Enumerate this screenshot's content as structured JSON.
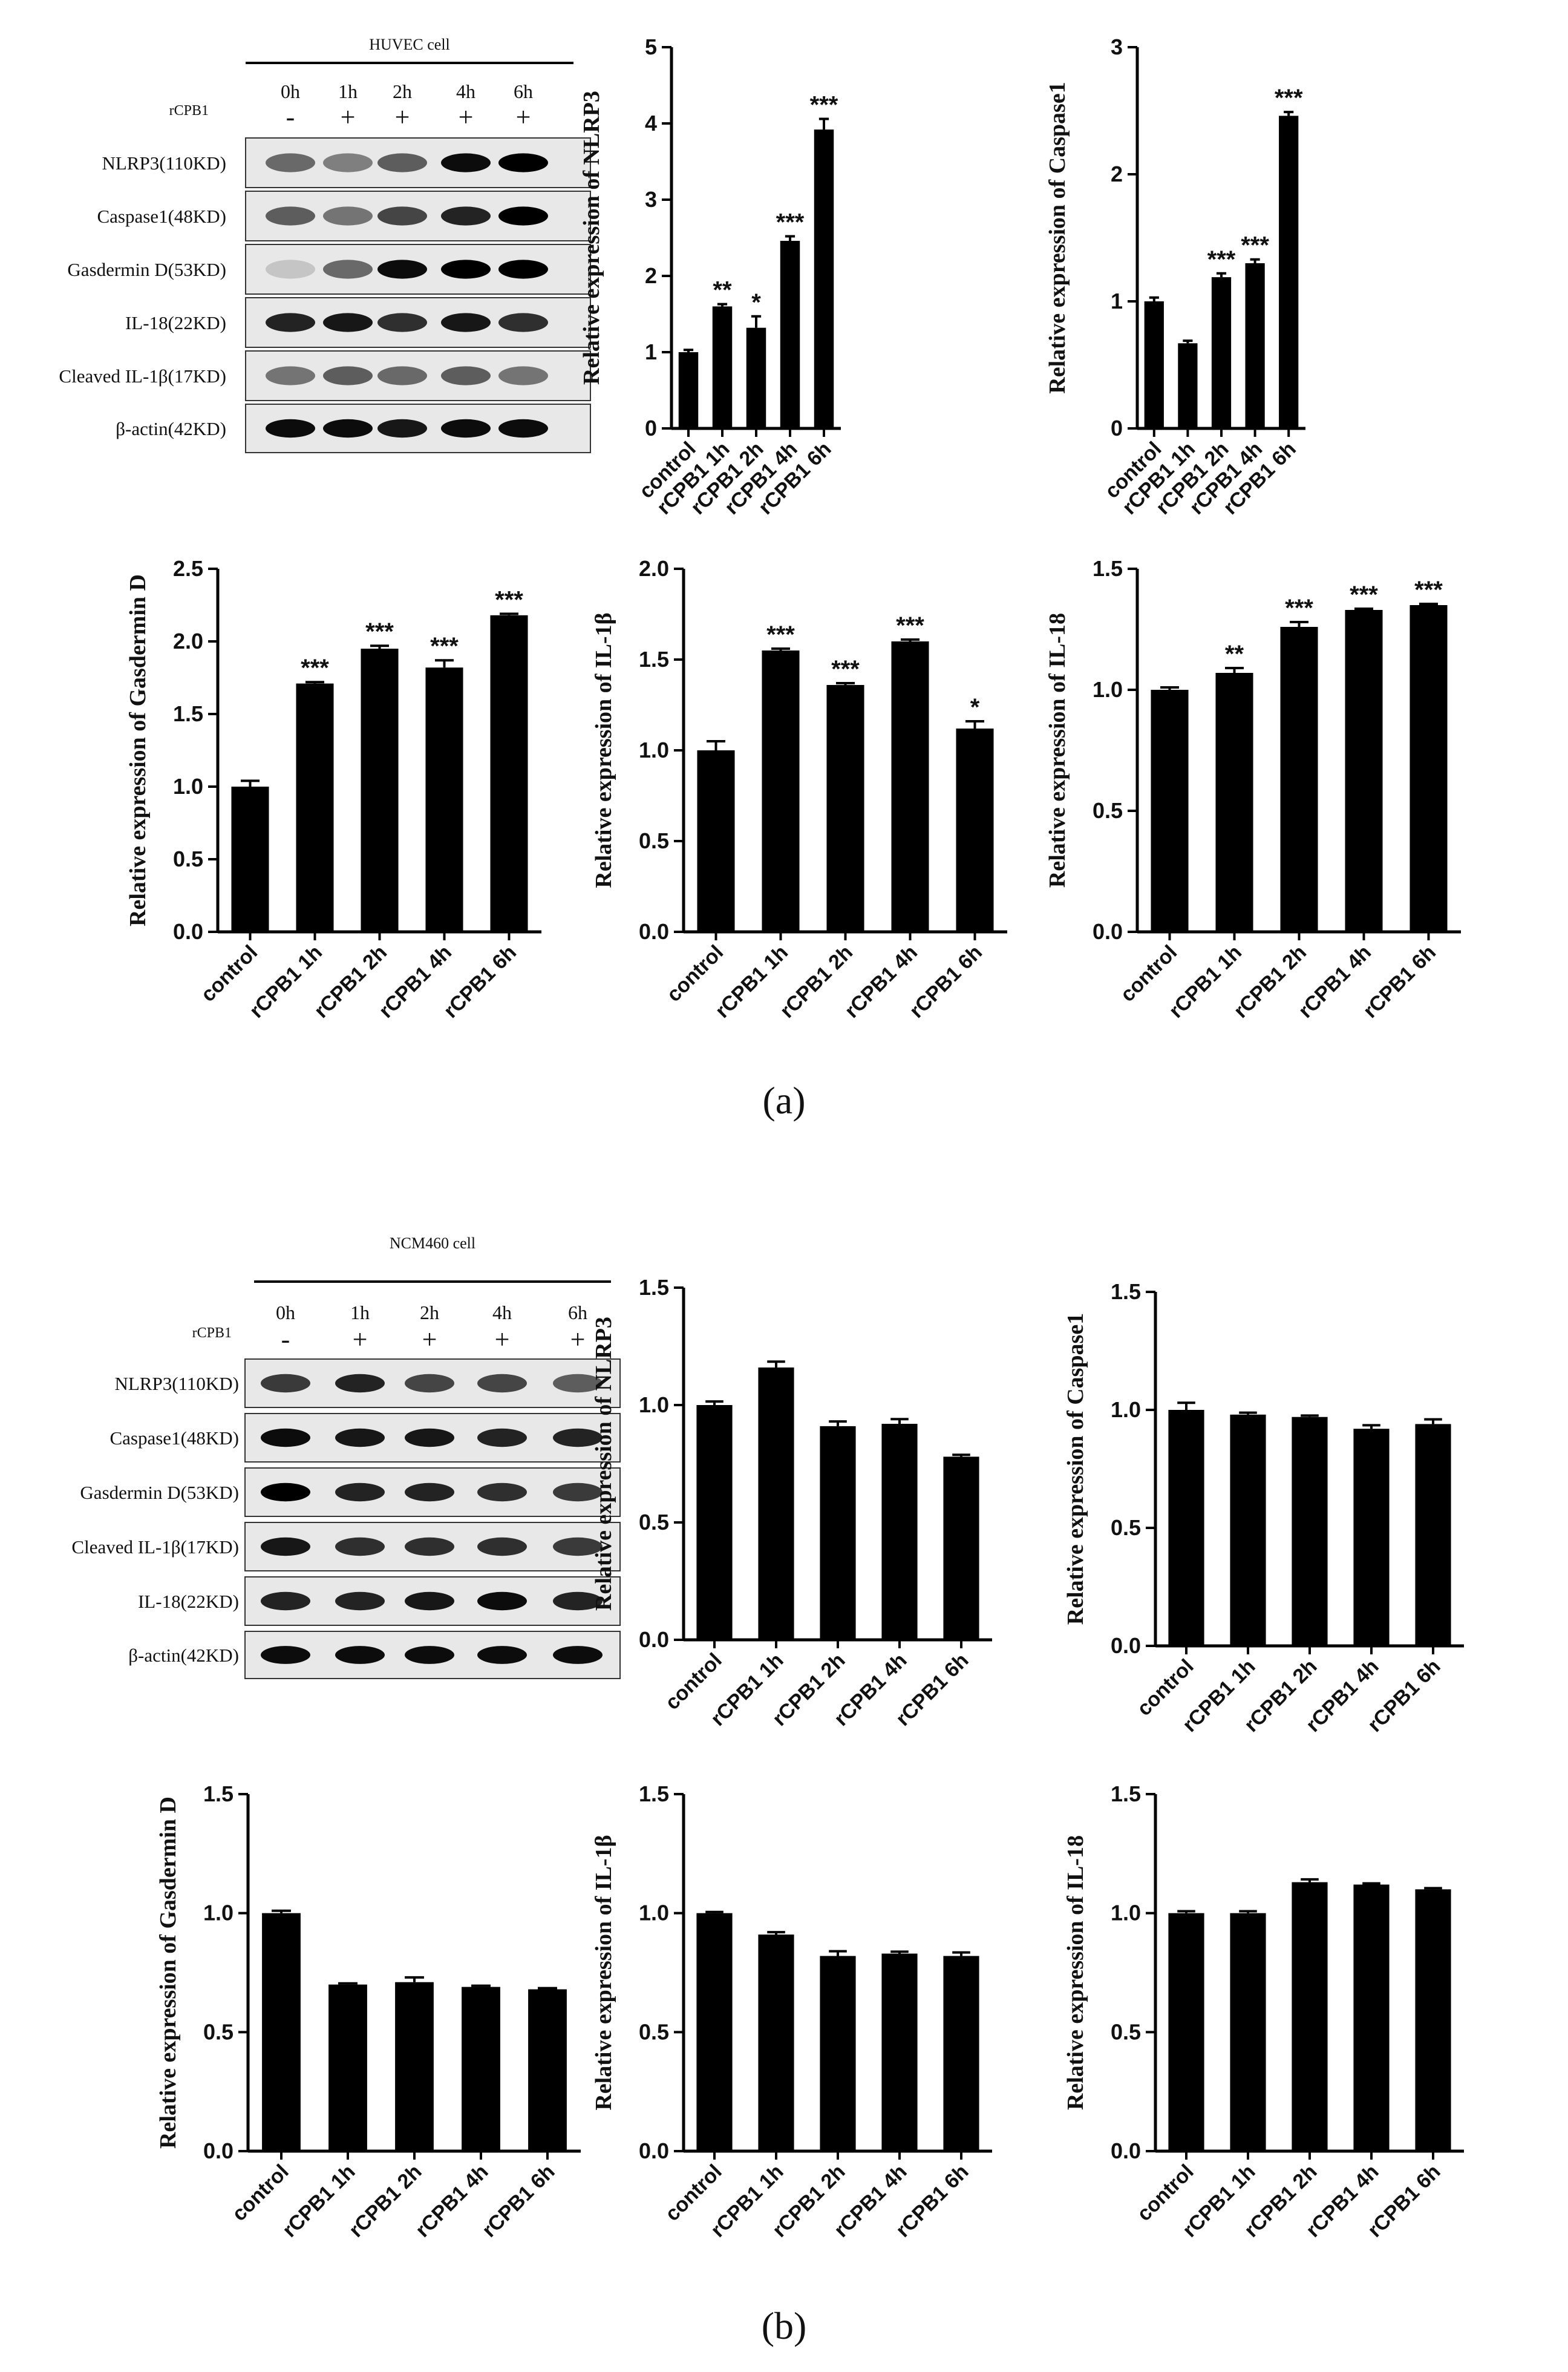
{
  "panels": [
    {
      "id": "a",
      "caption": "(a)",
      "blot": {
        "cell_label": "HUVEC cell",
        "time_labels": [
          "0h",
          "1h",
          "2h",
          "4h",
          "6h"
        ],
        "treatment_label": "rCPB1",
        "treatment_marks": [
          "-",
          "+",
          "+",
          "+",
          "+"
        ],
        "rows": [
          "NLRP3(110KD)",
          "Caspase1(48KD)",
          "Gasdermin D(53KD)",
          "IL-18(22KD)",
          "Cleaved IL-1β(17KD)",
          "β-actin(42KD)"
        ]
      }
    },
    {
      "id": "b",
      "caption": "(b)",
      "blot": {
        "cell_label": "NCM460 cell",
        "time_labels": [
          "0h",
          "1h",
          "2h",
          "4h",
          "6h"
        ],
        "treatment_label": "rCPB1",
        "treatment_marks": [
          "-",
          "+",
          "+",
          "+",
          "+"
        ],
        "rows": [
          "NLRP3(110KD)",
          "Caspase1(48KD)",
          "Gasdermin D(53KD)",
          "Cleaved IL-1β(17KD)",
          "IL-18(22KD)",
          "β-actin(42KD)"
        ]
      }
    }
  ],
  "chart_data": [
    {
      "panel": "a",
      "type": "bar",
      "title": "",
      "xlabel": "",
      "ylabel": "Relative expression of NLRP3",
      "categories": [
        "control",
        "rCPB1 1h",
        "rCPB1 2h",
        "rCPB1 4h",
        "rCPB1 6h"
      ],
      "values": [
        1.0,
        1.6,
        1.32,
        2.46,
        3.92
      ],
      "errors": [
        0.03,
        0.03,
        0.15,
        0.06,
        0.14
      ],
      "significance": [
        "",
        "**",
        "*",
        "***",
        "***"
      ],
      "ylim": [
        0,
        5
      ],
      "yticks": [
        "0",
        "1",
        "2",
        "3",
        "4",
        "5"
      ]
    },
    {
      "panel": "a",
      "type": "bar",
      "title": "",
      "xlabel": "",
      "ylabel": "Relative expression of Caspase1",
      "categories": [
        "control",
        "rCPB1 1h",
        "rCPB1 2h",
        "rCPB1 4h",
        "rCPB1 6h"
      ],
      "values": [
        1.0,
        0.67,
        1.19,
        1.3,
        2.46
      ],
      "errors": [
        0.03,
        0.02,
        0.03,
        0.03,
        0.03
      ],
      "significance": [
        "",
        "",
        "***",
        "***",
        "***"
      ],
      "ylim": [
        0,
        3
      ],
      "yticks": [
        "0",
        "1",
        "2",
        "3"
      ]
    },
    {
      "panel": "a",
      "type": "bar",
      "title": "",
      "xlabel": "",
      "ylabel": "Relative expression of Gasdermin D",
      "categories": [
        "control",
        "rCPB1 1h",
        "rCPB1 2h",
        "rCPB1 4h",
        "rCPB1 6h"
      ],
      "values": [
        1.0,
        1.71,
        1.95,
        1.82,
        2.18
      ],
      "errors": [
        0.04,
        0.01,
        0.02,
        0.05,
        0.01
      ],
      "significance": [
        "",
        "***",
        "***",
        "***",
        "***"
      ],
      "ylim": [
        0,
        2.5
      ],
      "yticks": [
        "0.0",
        "0.5",
        "1.0",
        "1.5",
        "2.0",
        "2.5"
      ]
    },
    {
      "panel": "a",
      "type": "bar",
      "title": "",
      "xlabel": "",
      "ylabel": "Relative expression of IL-1β",
      "categories": [
        "control",
        "rCPB1 1h",
        "rCPB1 2h",
        "rCPB1 4h",
        "rCPB1 6h"
      ],
      "values": [
        1.0,
        1.55,
        1.36,
        1.6,
        1.12
      ],
      "errors": [
        0.05,
        0.01,
        0.01,
        0.01,
        0.04
      ],
      "significance": [
        "",
        "***",
        "***",
        "***",
        "*"
      ],
      "ylim": [
        0,
        2.0
      ],
      "yticks": [
        "0.0",
        "0.5",
        "1.0",
        "1.5",
        "2.0"
      ]
    },
    {
      "panel": "a",
      "type": "bar",
      "title": "",
      "xlabel": "",
      "ylabel": "Relative expression of IL-18",
      "categories": [
        "control",
        "rCPB1 1h",
        "rCPB1 2h",
        "rCPB1 4h",
        "rCPB1 6h"
      ],
      "values": [
        1.0,
        1.07,
        1.26,
        1.33,
        1.35
      ],
      "errors": [
        0.01,
        0.02,
        0.02,
        0.005,
        0.005
      ],
      "significance": [
        "",
        "**",
        "***",
        "***",
        "***"
      ],
      "ylim": [
        0,
        1.5
      ],
      "yticks": [
        "0.0",
        "0.5",
        "1.0",
        "1.5"
      ]
    },
    {
      "panel": "b",
      "type": "bar",
      "title": "",
      "xlabel": "",
      "ylabel": "Relative expression of NLRP3",
      "categories": [
        "control",
        "rCPB1 1h",
        "rCPB1 2h",
        "rCPB1 4h",
        "rCPB1 6h"
      ],
      "values": [
        1.0,
        1.16,
        0.91,
        0.92,
        0.78
      ],
      "errors": [
        0.015,
        0.025,
        0.02,
        0.02,
        0.008
      ],
      "significance": [
        "",
        "",
        "",
        "",
        ""
      ],
      "ylim": [
        0,
        1.5
      ],
      "yticks": [
        "0.0",
        "0.5",
        "1.0",
        "1.5"
      ]
    },
    {
      "panel": "b",
      "type": "bar",
      "title": "",
      "xlabel": "",
      "ylabel": "Relative expression of Caspase1",
      "categories": [
        "control",
        "rCPB1 1h",
        "rCPB1 2h",
        "rCPB1 4h",
        "rCPB1 6h"
      ],
      "values": [
        1.0,
        0.98,
        0.97,
        0.92,
        0.94
      ],
      "errors": [
        0.03,
        0.008,
        0.006,
        0.015,
        0.02
      ],
      "significance": [
        "",
        "",
        "",
        "",
        ""
      ],
      "ylim": [
        0,
        1.5
      ],
      "yticks": [
        "0.0",
        "0.5",
        "1.0",
        "1.5"
      ]
    },
    {
      "panel": "b",
      "type": "bar",
      "title": "",
      "xlabel": "",
      "ylabel": "Relative expression of Gasdermin D",
      "categories": [
        "control",
        "rCPB1 1h",
        "rCPB1 2h",
        "rCPB1 4h",
        "rCPB1 6h"
      ],
      "values": [
        1.0,
        0.7,
        0.71,
        0.69,
        0.68
      ],
      "errors": [
        0.01,
        0.005,
        0.02,
        0.005,
        0.005
      ],
      "significance": [
        "",
        "",
        "",
        "",
        ""
      ],
      "ylim": [
        0,
        1.5
      ],
      "yticks": [
        "0.0",
        "0.5",
        "1.0",
        "1.5"
      ]
    },
    {
      "panel": "b",
      "type": "bar",
      "title": "",
      "xlabel": "",
      "ylabel": "Relative expression of IL-1β",
      "categories": [
        "control",
        "rCPB1 1h",
        "rCPB1 2h",
        "rCPB1 4h",
        "rCPB1 6h"
      ],
      "values": [
        1.0,
        0.91,
        0.82,
        0.83,
        0.82
      ],
      "errors": [
        0.005,
        0.01,
        0.02,
        0.008,
        0.015
      ],
      "significance": [
        "",
        "",
        "",
        "",
        ""
      ],
      "ylim": [
        0,
        1.5
      ],
      "yticks": [
        "0.0",
        "0.5",
        "1.0",
        "1.5"
      ]
    },
    {
      "panel": "b",
      "type": "bar",
      "title": "",
      "xlabel": "",
      "ylabel": "Relative expression of IL-18",
      "categories": [
        "control",
        "rCPB1 1h",
        "rCPB1 2h",
        "rCPB1 4h",
        "rCPB1 6h"
      ],
      "values": [
        1.0,
        1.0,
        1.13,
        1.12,
        1.1
      ],
      "errors": [
        0.008,
        0.008,
        0.012,
        0.005,
        0.005
      ],
      "significance": [
        "",
        "",
        "",
        "",
        ""
      ],
      "ylim": [
        0,
        1.5
      ],
      "yticks": [
        "0.0",
        "0.5",
        "1.0",
        "1.5"
      ]
    }
  ]
}
